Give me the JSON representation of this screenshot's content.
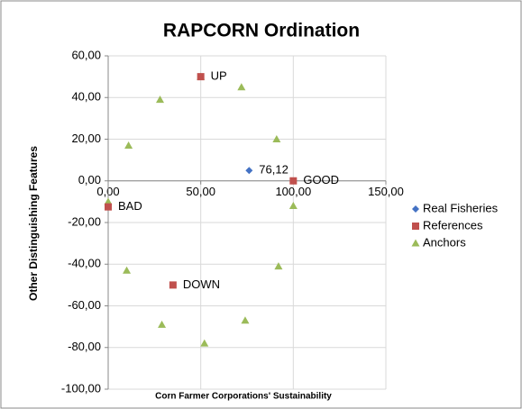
{
  "chart_data": {
    "type": "scatter",
    "title": "RAPCORN Ordination",
    "xlabel": "Corn Farmer Corporations' Sustainability",
    "ylabel": "Other Distinguishing Features",
    "xlim": [
      0,
      150
    ],
    "xticks": [
      {
        "value": 0,
        "label": "0,00"
      },
      {
        "value": 50,
        "label": "50,00"
      },
      {
        "value": 100,
        "label": "100,00"
      },
      {
        "value": 150,
        "label": "150,00"
      }
    ],
    "ylim": [
      -100,
      60
    ],
    "yticks": [
      {
        "value": -100,
        "label": "-100,00"
      },
      {
        "value": -80,
        "label": "-80,00"
      },
      {
        "value": -60,
        "label": "-60,00"
      },
      {
        "value": -40,
        "label": "-40,00"
      },
      {
        "value": -20,
        "label": "-20,00"
      },
      {
        "value": 0,
        "label": "0,00"
      },
      {
        "value": 20,
        "label": "20,00"
      },
      {
        "value": 40,
        "label": "40,00"
      },
      {
        "value": 60,
        "label": "60,00"
      }
    ],
    "grid": true,
    "legend": "right",
    "series": [
      {
        "name": "Real Fisheries",
        "color": "#4472c4",
        "marker": "diamond",
        "x": [
          76.12
        ],
        "values": [
          5
        ],
        "labels": [
          "76,12"
        ]
      },
      {
        "name": "References",
        "color": "#c0504d",
        "marker": "square",
        "x": [
          50,
          100,
          0,
          35
        ],
        "values": [
          50,
          0,
          -12.5,
          -50
        ],
        "labels": [
          "UP",
          "GOOD",
          "BAD",
          "DOWN"
        ]
      },
      {
        "name": "Anchors",
        "color": "#9bbb59",
        "marker": "triangle",
        "x": [
          50,
          28,
          72,
          11,
          91,
          0,
          100,
          92,
          10,
          29,
          74,
          52
        ],
        "values": [
          50,
          39,
          45,
          17,
          20,
          -10,
          -12,
          -41,
          -43,
          -69,
          -67,
          -78
        ]
      }
    ]
  }
}
